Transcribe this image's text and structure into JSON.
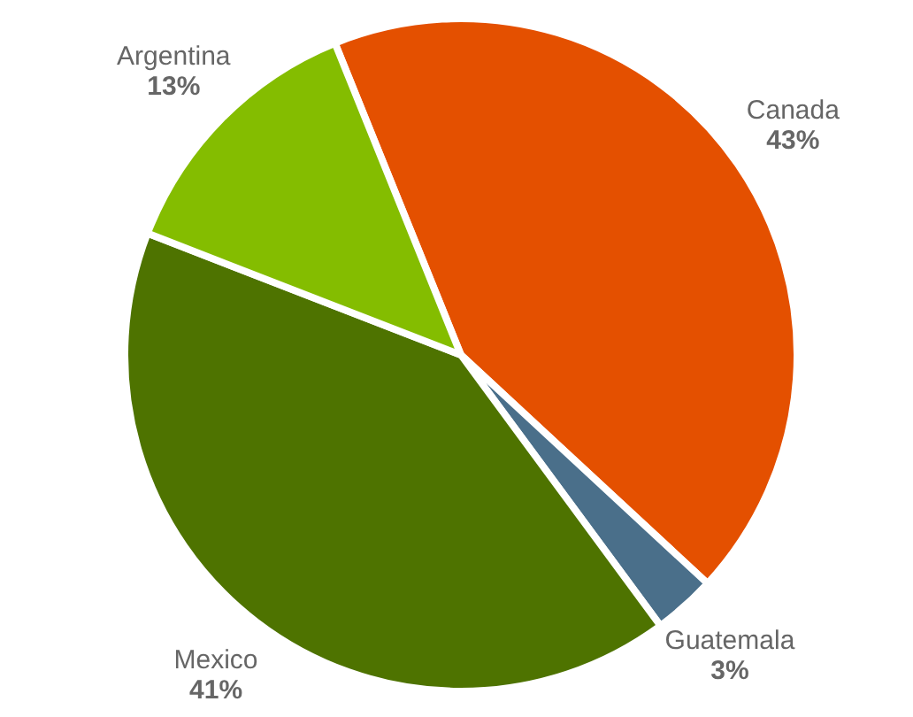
{
  "chart_data": {
    "type": "pie",
    "categories": [
      "Canada",
      "Guatemala",
      "Mexico",
      "Argentina"
    ],
    "values": [
      43,
      3,
      41,
      13
    ],
    "colors": [
      "#e45000",
      "#4a6f8a",
      "#4e7300",
      "#84bd00"
    ],
    "value_labels": [
      "43%",
      "3%",
      "41%",
      "13%"
    ]
  }
}
